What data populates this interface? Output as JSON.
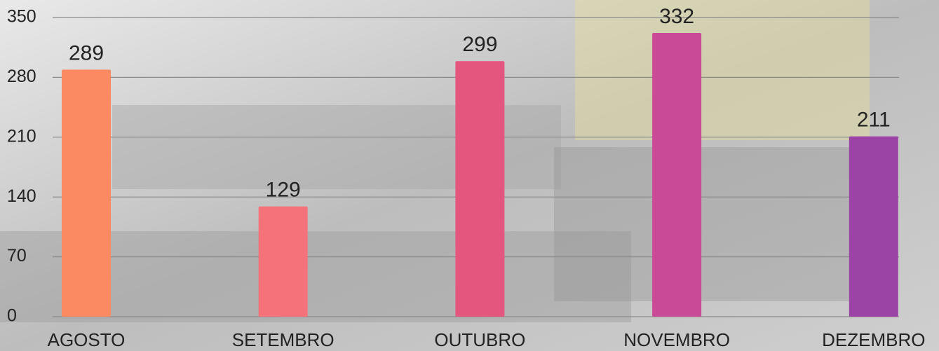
{
  "chart_data": {
    "type": "bar",
    "categories": [
      "AGOSTO",
      "SETEMBRO",
      "OUTUBRO",
      "NOVEMBRO",
      "DEZEMBRO"
    ],
    "values": [
      289,
      129,
      299,
      332,
      211
    ],
    "colors": [
      "#fb8a62",
      "#f6727a",
      "#e5567f",
      "#c94a96",
      "#9c44a6"
    ],
    "ylim": [
      0,
      350
    ],
    "yticks": [
      0,
      70,
      140,
      210,
      280,
      350
    ],
    "grid": true
  }
}
